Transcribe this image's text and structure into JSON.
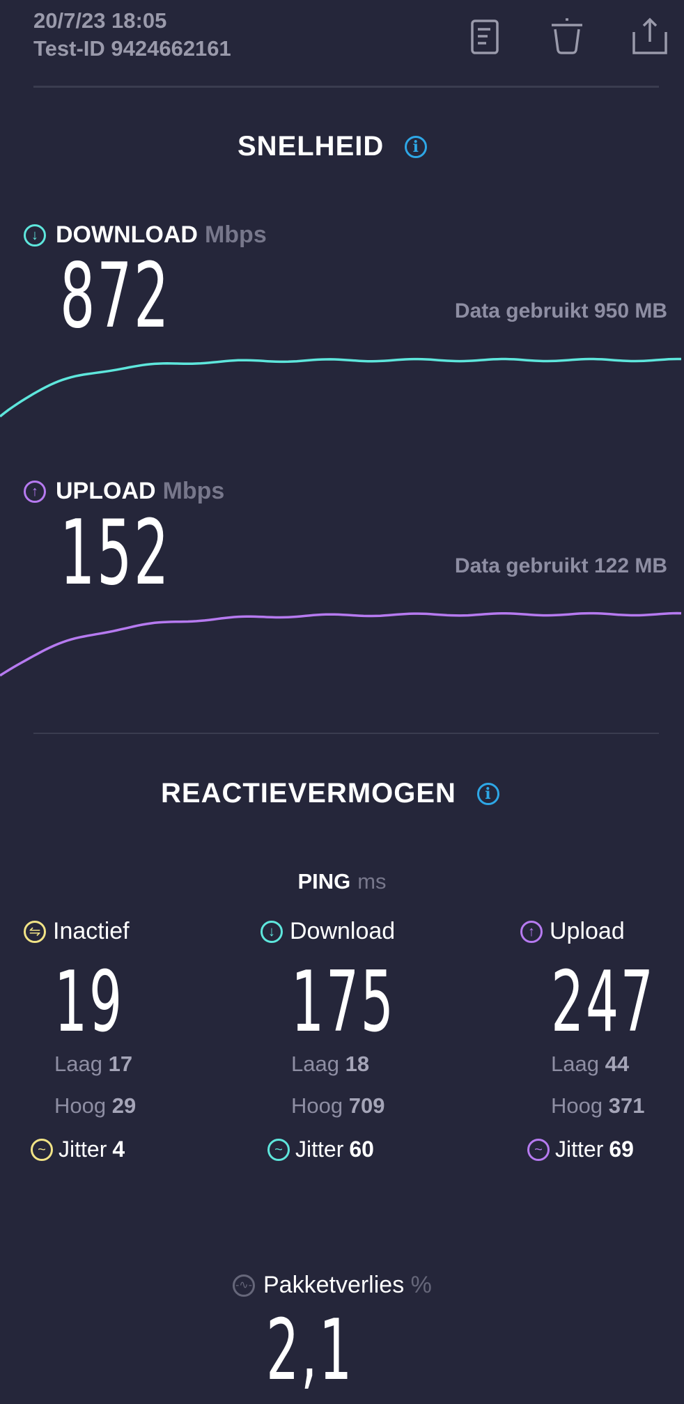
{
  "header": {
    "datetime": "20/7/23 18:05",
    "test_id": "Test-ID 9424662161",
    "icons": [
      "document-icon",
      "trash-icon",
      "share-icon"
    ]
  },
  "speed": {
    "title": "SNELHEID",
    "info_icon": "i",
    "download": {
      "label": "DOWNLOAD",
      "unit": "Mbps",
      "value": "872",
      "data_used": "Data gebruikt 950 MB",
      "color": "#5ee6dc"
    },
    "upload": {
      "label": "UPLOAD",
      "unit": "Mbps",
      "value": "152",
      "data_used": "Data gebruikt 122 MB",
      "color": "#b67af0"
    }
  },
  "responsiveness": {
    "title": "REACTIEVERMOGEN",
    "info_icon": "i",
    "ping_label": "PING",
    "ping_unit": "ms",
    "columns": [
      {
        "label": "Inactief",
        "value": "19",
        "low_label": "Laag",
        "low": "17",
        "high_label": "Hoog",
        "high": "29",
        "jitter_label": "Jitter",
        "jitter": "4",
        "color": "#f1e386"
      },
      {
        "label": "Download",
        "value": "175",
        "low_label": "Laag",
        "low": "18",
        "high_label": "Hoog",
        "high": "709",
        "jitter_label": "Jitter",
        "jitter": "60",
        "color": "#5ee6dc"
      },
      {
        "label": "Upload",
        "value": "247",
        "low_label": "Laag",
        "low": "44",
        "high_label": "Hoog",
        "high": "371",
        "jitter_label": "Jitter",
        "jitter": "69",
        "color": "#b67af0"
      }
    ],
    "packet_loss": {
      "label": "Pakketverlies",
      "unit": "%",
      "value": "2,1"
    }
  }
}
